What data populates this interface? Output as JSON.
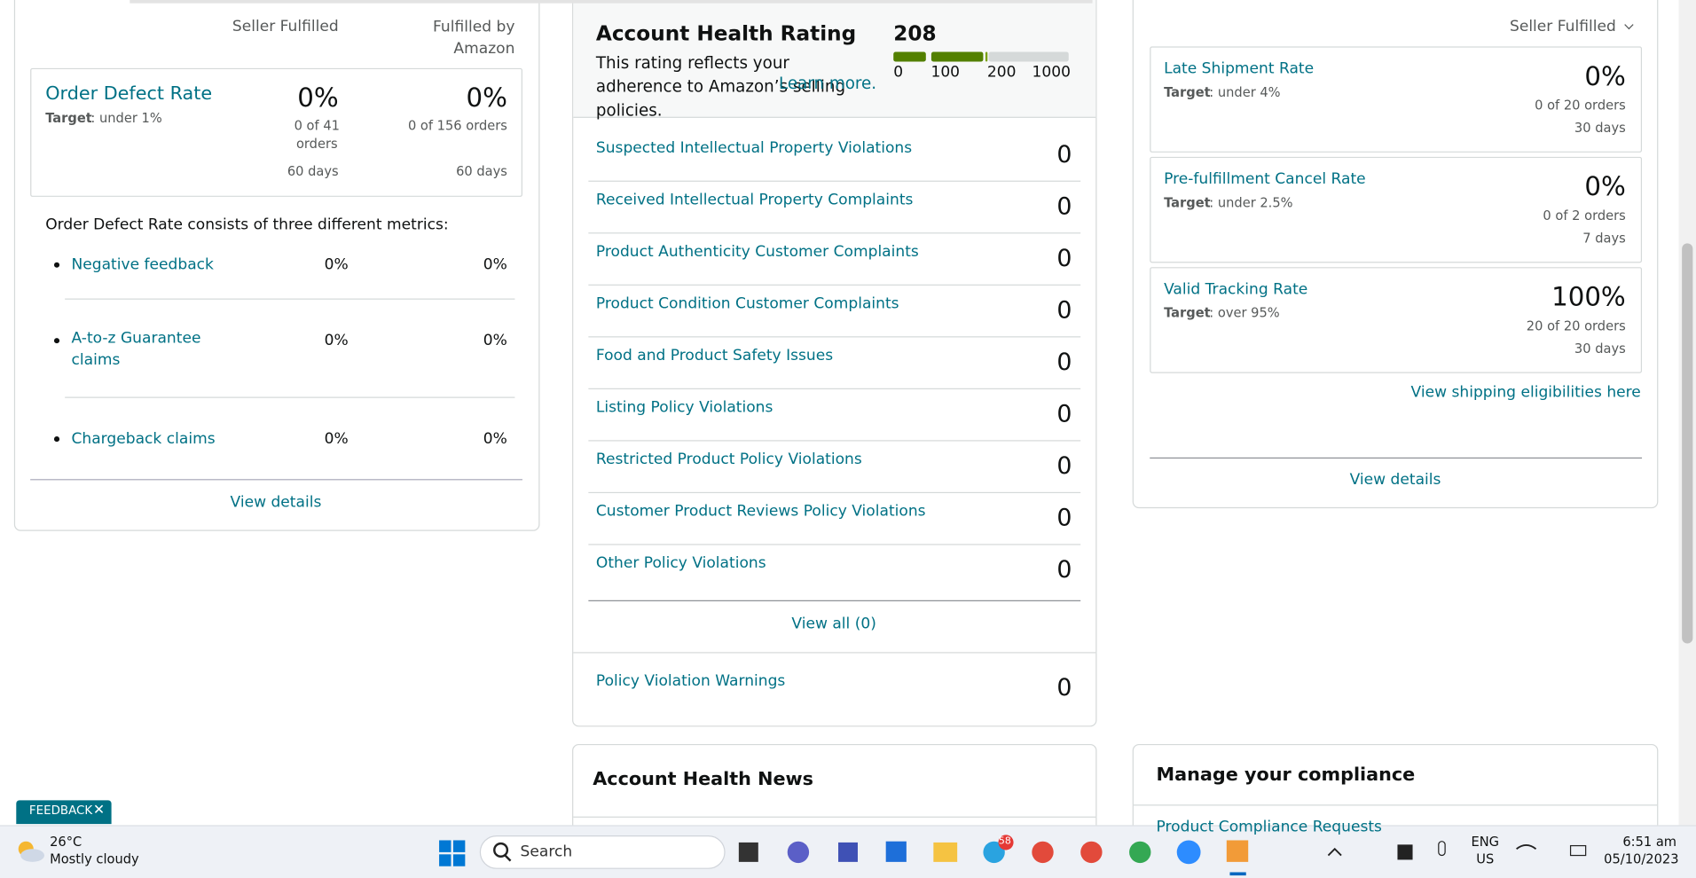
{
  "left_panel": {
    "col_headers": [
      "Seller Fulfilled",
      "Fulfilled by Amazon"
    ],
    "odr": {
      "title": "Order Defect Rate",
      "target_label": "Target",
      "target": ": under 1%",
      "seller": {
        "value": "0%",
        "detail": "0 of 41 orders",
        "period": "60 days"
      },
      "amazon": {
        "value": "0%",
        "detail": "0 of 156 orders",
        "period": "60 days"
      }
    },
    "consists": "Order Defect Rate consists of three different metrics:",
    "metrics": [
      {
        "name": "Negative feedback",
        "seller": "0%",
        "amazon": "0%"
      },
      {
        "name": "A-to-z Guarantee claims",
        "seller": "0%",
        "amazon": "0%"
      },
      {
        "name": "Chargeback claims",
        "seller": "0%",
        "amazon": "0%"
      }
    ],
    "view_details": "View details"
  },
  "account_health": {
    "title": "Account Health Rating",
    "score": "208",
    "description": "This rating reflects your adherence to Amazon’s selling policies.",
    "learn_more": "Learn more.",
    "scale": [
      "0",
      "100",
      "200",
      "1000"
    ],
    "violations": [
      {
        "name": "Suspected Intellectual Property Violations",
        "count": "0"
      },
      {
        "name": "Received Intellectual Property Complaints",
        "count": "0"
      },
      {
        "name": "Product Authenticity Customer Complaints",
        "count": "0"
      },
      {
        "name": "Product Condition Customer Complaints",
        "count": "0"
      },
      {
        "name": "Food and Product Safety Issues",
        "count": "0"
      },
      {
        "name": "Listing Policy Violations",
        "count": "0"
      },
      {
        "name": "Restricted Product Policy Violations",
        "count": "0"
      },
      {
        "name": "Customer Product Reviews Policy Violations",
        "count": "0"
      },
      {
        "name": "Other Policy Violations",
        "count": "0"
      }
    ],
    "view_all": "View all (0)",
    "warnings": {
      "name": "Policy Violation Warnings",
      "count": "0"
    }
  },
  "right_panel": {
    "selector": "Seller Fulfilled",
    "metrics": [
      {
        "name": "Late Shipment Rate",
        "target_label": "Target",
        "target": ": under 4%",
        "value": "0%",
        "detail": "0 of 20 orders",
        "period": "30 days"
      },
      {
        "name": "Pre-fulfillment Cancel Rate",
        "target_label": "Target",
        "target": ": under 2.5%",
        "value": "0%",
        "detail": "0 of 2 orders",
        "period": "7 days"
      },
      {
        "name": "Valid Tracking Rate",
        "target_label": "Target",
        "target": ": over 95%",
        "value": "100%",
        "detail": "20 of 20 orders",
        "period": "30 days"
      }
    ],
    "shipping_link": "View shipping eligibilities here",
    "view_details": "View details"
  },
  "news": {
    "title": "Account Health News"
  },
  "compliance": {
    "title": "Manage your compliance",
    "first_item": "Product Compliance Requests"
  },
  "feedback": "FEEDBACK",
  "taskbar": {
    "weather": {
      "temp": "26°C",
      "condition": "Mostly cloudy"
    },
    "search": "Search",
    "telegram_badge": "58",
    "lang": [
      "ENG",
      "US"
    ],
    "time": "6:51 am",
    "date": "05/10/2023"
  }
}
